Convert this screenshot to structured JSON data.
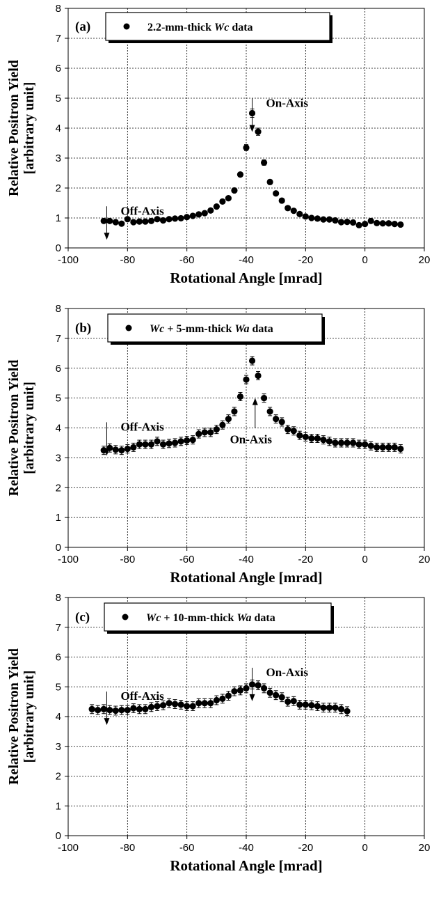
{
  "chart_data": [
    {
      "type": "scatter",
      "panel_label": "(a)",
      "legend": {
        "prefix": "2.2-mm-thick ",
        "italic": "Wc",
        "suffix": " data"
      },
      "ylabel_line1": "Relative Positron Yield",
      "ylabel_line2": "[arbitrary unit]",
      "xlabel": "Rotational Angle [mrad]",
      "xlim": [
        -100,
        20
      ],
      "ylim": [
        0,
        8
      ],
      "xticks": [
        "-100",
        "-80",
        "-60",
        "-40",
        "-20",
        "0",
        "20"
      ],
      "yticks": [
        "0",
        "1",
        "2",
        "3",
        "4",
        "5",
        "6",
        "7",
        "8"
      ],
      "annotations": [
        {
          "text": "Off-Axis",
          "x": -87,
          "y": 1.25
        },
        {
          "text": "On-Axis",
          "x": -38,
          "y": 4.85
        }
      ],
      "series": [
        {
          "x": [
            -88,
            -86,
            -84,
            -82,
            -80,
            -78,
            -76,
            -74,
            -72,
            -70,
            -68,
            -66,
            -64,
            -62,
            -60,
            -58,
            -56,
            -54,
            -52,
            -50,
            -48,
            -46,
            -44,
            -42,
            -40,
            -38,
            -36,
            -34,
            -32,
            -30,
            -28,
            -26,
            -24,
            -22,
            -20,
            -18,
            -16,
            -14,
            -12,
            -10,
            -8,
            -6,
            -4,
            -2,
            0,
            2,
            4,
            6,
            8,
            10,
            12
          ],
          "y": [
            0.9,
            0.9,
            0.86,
            0.81,
            0.96,
            0.86,
            0.88,
            0.88,
            0.9,
            0.96,
            0.92,
            0.96,
            0.98,
            0.99,
            1.03,
            1.07,
            1.12,
            1.16,
            1.25,
            1.38,
            1.55,
            1.66,
            1.92,
            2.45,
            3.35,
            4.5,
            3.88,
            2.85,
            2.2,
            1.82,
            1.58,
            1.33,
            1.24,
            1.13,
            1.05,
            1.0,
            0.98,
            0.95,
            0.95,
            0.92,
            0.86,
            0.87,
            0.85,
            0.76,
            0.8,
            0.9,
            0.83,
            0.82,
            0.82,
            0.8,
            0.78
          ],
          "err": [
            0.05,
            0.05,
            0.05,
            0.05,
            0.05,
            0.05,
            0.05,
            0.05,
            0.05,
            0.05,
            0.05,
            0.05,
            0.05,
            0.05,
            0.05,
            0.05,
            0.05,
            0.05,
            0.05,
            0.05,
            0.05,
            0.05,
            0.06,
            0.07,
            0.1,
            0.14,
            0.12,
            0.09,
            0.08,
            0.06,
            0.05,
            0.05,
            0.05,
            0.05,
            0.05,
            0.05,
            0.05,
            0.05,
            0.05,
            0.05,
            0.05,
            0.05,
            0.05,
            0.05,
            0.05,
            0.05,
            0.05,
            0.05,
            0.05,
            0.05,
            0.05
          ]
        }
      ]
    },
    {
      "type": "scatter",
      "panel_label": "(b)",
      "legend": {
        "prefix": "",
        "italic": "Wc",
        "mid": " + 5-mm-thick ",
        "italic2": "Wa",
        "suffix": " data"
      },
      "ylabel_line1": "Relative Positron Yield",
      "ylabel_line2": "[arbitrary unit]",
      "xlabel": "Rotational Angle [mrad]",
      "xlim": [
        -100,
        20
      ],
      "ylim": [
        0,
        8
      ],
      "xticks": [
        "-100",
        "-80",
        "-60",
        "-40",
        "-20",
        "0",
        "20"
      ],
      "yticks": [
        "0",
        "1",
        "2",
        "3",
        "4",
        "5",
        "6",
        "7",
        "8"
      ],
      "annotations": [
        {
          "text": "Off-Axis",
          "x": -87,
          "y": 4.05
        },
        {
          "text": "On-Axis",
          "x": -37,
          "y": 3.9
        }
      ],
      "series": [
        {
          "x": [
            -88,
            -86,
            -84,
            -82,
            -80,
            -78,
            -76,
            -74,
            -72,
            -70,
            -68,
            -66,
            -64,
            -62,
            -60,
            -58,
            -56,
            -54,
            -52,
            -50,
            -48,
            -46,
            -44,
            -42,
            -40,
            -38,
            -36,
            -34,
            -32,
            -30,
            -28,
            -26,
            -24,
            -22,
            -20,
            -18,
            -16,
            -14,
            -12,
            -10,
            -8,
            -6,
            -4,
            -2,
            0,
            2,
            4,
            6,
            8,
            10,
            12
          ],
          "y": [
            3.25,
            3.33,
            3.27,
            3.25,
            3.3,
            3.35,
            3.45,
            3.45,
            3.45,
            3.55,
            3.45,
            3.48,
            3.5,
            3.55,
            3.58,
            3.6,
            3.8,
            3.85,
            3.85,
            3.95,
            4.1,
            4.3,
            4.55,
            5.05,
            5.62,
            6.25,
            5.75,
            5.0,
            4.55,
            4.3,
            4.2,
            3.95,
            3.9,
            3.75,
            3.7,
            3.65,
            3.65,
            3.6,
            3.55,
            3.5,
            3.5,
            3.5,
            3.5,
            3.45,
            3.45,
            3.4,
            3.35,
            3.35,
            3.35,
            3.35,
            3.3
          ]
        }
      ],
      "err": 0.14
    },
    {
      "type": "scatter",
      "panel_label": "(c)",
      "legend": {
        "prefix": "",
        "italic": "Wc",
        "mid": " + 10-mm-thick ",
        "italic2": "Wa",
        "suffix": " data"
      },
      "ylabel_line1": "Relative Positron Yield",
      "ylabel_line2": "[arbitrary unit]",
      "xlabel": "Rotational Angle [mrad]",
      "xlim": [
        -100,
        20
      ],
      "ylim": [
        0,
        8
      ],
      "xticks": [
        "-100",
        "-80",
        "-60",
        "-40",
        "-20",
        "0",
        "20"
      ],
      "yticks": [
        "0",
        "1",
        "2",
        "3",
        "4",
        "5",
        "6",
        "7",
        "8"
      ],
      "annotations": [
        {
          "text": "Off-Axis",
          "x": -87,
          "y": 4.7
        },
        {
          "text": "On-Axis",
          "x": -38,
          "y": 5.5
        }
      ],
      "series": [
        {
          "x": [
            -92,
            -90,
            -88,
            -86,
            -84,
            -82,
            -80,
            -78,
            -76,
            -74,
            -72,
            -70,
            -68,
            -66,
            -64,
            -62,
            -60,
            -58,
            -56,
            -54,
            -52,
            -50,
            -48,
            -46,
            -44,
            -42,
            -40,
            -38,
            -36,
            -34,
            -32,
            -30,
            -28,
            -26,
            -24,
            -22,
            -20,
            -18,
            -16,
            -14,
            -12,
            -10,
            -8,
            -6
          ],
          "y": [
            4.25,
            4.22,
            4.25,
            4.22,
            4.2,
            4.22,
            4.22,
            4.28,
            4.25,
            4.25,
            4.32,
            4.35,
            4.38,
            4.45,
            4.42,
            4.4,
            4.35,
            4.35,
            4.45,
            4.45,
            4.45,
            4.55,
            4.6,
            4.7,
            4.85,
            4.88,
            4.95,
            5.08,
            5.05,
            4.95,
            4.8,
            4.72,
            4.65,
            4.5,
            4.52,
            4.4,
            4.4,
            4.38,
            4.35,
            4.3,
            4.3,
            4.3,
            4.25,
            4.18
          ]
        }
      ],
      "err": 0.15
    }
  ]
}
